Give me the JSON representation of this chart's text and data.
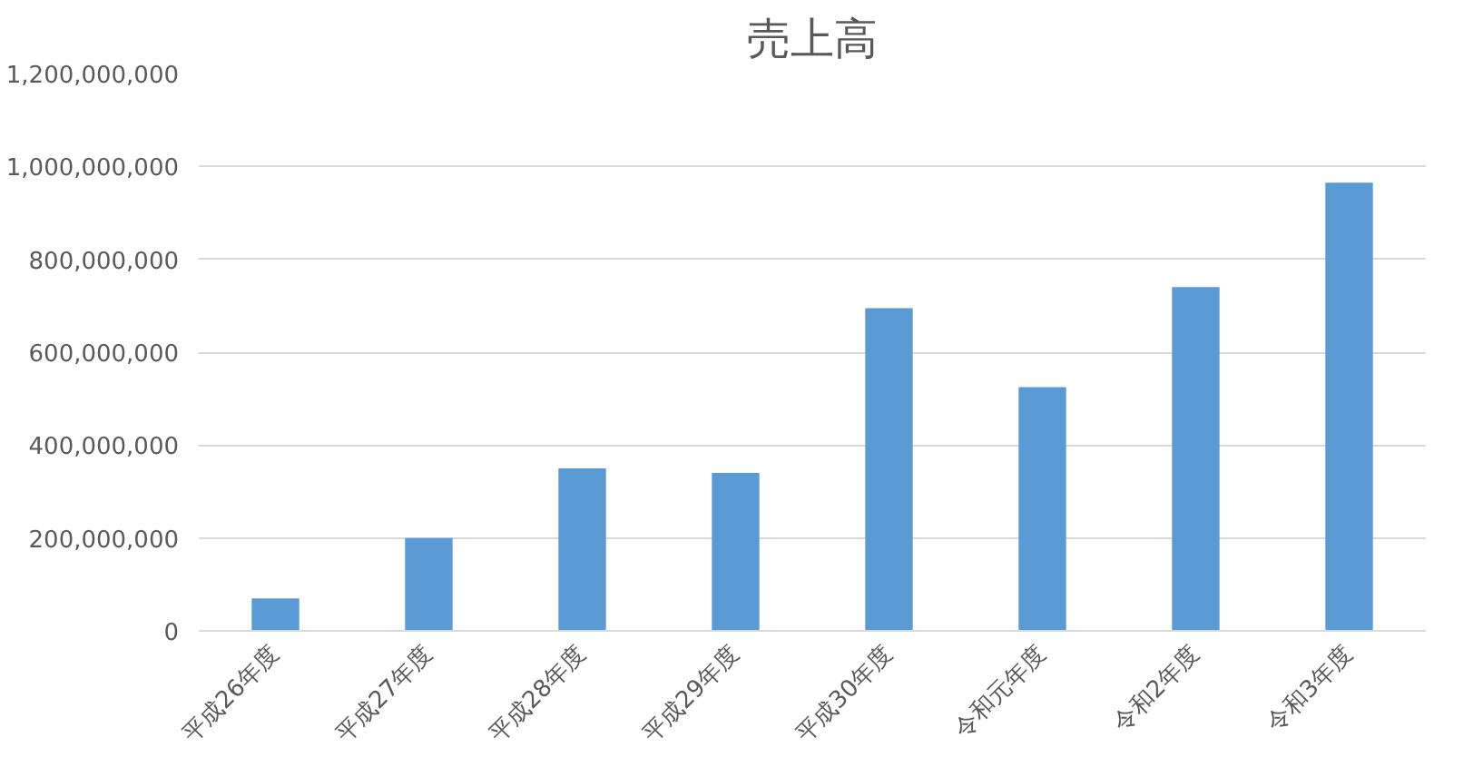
{
  "chart_data": {
    "type": "bar",
    "title": "売上高",
    "categories": [
      "平成26年度",
      "平成27年度",
      "平成28年度",
      "平成29年度",
      "平成30年度",
      "令和元年度",
      "令和2年度",
      "令和3年度"
    ],
    "values": [
      70000000,
      200000000,
      350000000,
      340000000,
      695000000,
      525000000,
      740000000,
      965000000
    ],
    "color": "#5b9bd5",
    "ylim": [
      0,
      1200000000
    ],
    "yticks": [
      {
        "value": 0,
        "label": "0"
      },
      {
        "value": 200000000,
        "label": "200,000,000"
      },
      {
        "value": 400000000,
        "label": "400,000,000"
      },
      {
        "value": 600000000,
        "label": "600,000,000"
      },
      {
        "value": 800000000,
        "label": "800,000,000"
      },
      {
        "value": 1000000000,
        "label": "1,000,000,000"
      },
      {
        "value": 1200000000,
        "label": "1,200,000,000"
      }
    ],
    "grid": "y"
  }
}
